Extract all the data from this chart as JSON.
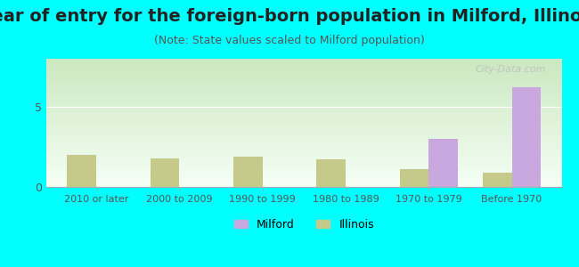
{
  "title": "Year of entry for the foreign-born population in Milford, Illinois",
  "subtitle": "(Note: State values scaled to Milford population)",
  "categories": [
    "2010 or later",
    "2000 to 2009",
    "1990 to 1999",
    "1980 to 1989",
    "1970 to 1979",
    "Before 1970"
  ],
  "milford_values": [
    0,
    0,
    0,
    0,
    3.0,
    6.2
  ],
  "illinois_values": [
    2.0,
    1.8,
    1.9,
    1.7,
    1.1,
    0.9
  ],
  "milford_color": "#c9a8e0",
  "illinois_color": "#c5c98a",
  "background_color": "#00ffff",
  "ylim": [
    0,
    8
  ],
  "yticks": [
    0,
    5
  ],
  "bar_width": 0.35,
  "title_fontsize": 14,
  "subtitle_fontsize": 9,
  "legend_milford": "Milford",
  "legend_illinois": "Illinois",
  "watermark": "City-Data.com"
}
